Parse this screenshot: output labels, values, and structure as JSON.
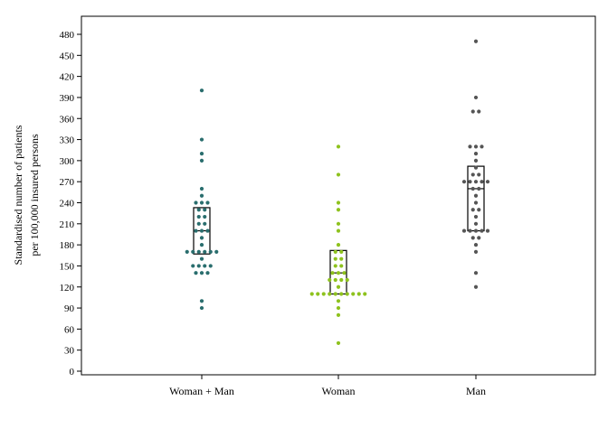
{
  "chart_data": {
    "type": "scatter",
    "subtype": "dot-strip-plot-with-box",
    "title": "",
    "xlabel": "",
    "ylabel_lines": [
      "Standardised number of patients",
      "per 100,000 insured persons"
    ],
    "ylim": [
      0,
      480
    ],
    "yticks": [
      0,
      30,
      60,
      90,
      120,
      150,
      180,
      210,
      240,
      270,
      300,
      330,
      360,
      390,
      420,
      450,
      480
    ],
    "grid": false,
    "legend": "none",
    "categories": [
      "Woman + Man",
      "Woman",
      "Man"
    ],
    "series": [
      {
        "category": "Woman + Man",
        "color": "#2a6e6e",
        "values": [
          90,
          100,
          140,
          140,
          140,
          150,
          150,
          150,
          150,
          160,
          170,
          170,
          170,
          170,
          170,
          170,
          180,
          190,
          200,
          200,
          200,
          210,
          210,
          220,
          220,
          230,
          230,
          240,
          240,
          240,
          250,
          260,
          300,
          310,
          330,
          400
        ],
        "box": {
          "q1": 167,
          "median": 200,
          "q3": 233
        }
      },
      {
        "category": "Woman",
        "color": "#8ec21e",
        "values": [
          40,
          80,
          90,
          100,
          110,
          110,
          110,
          110,
          110,
          110,
          110,
          110,
          110,
          110,
          120,
          130,
          130,
          130,
          130,
          140,
          140,
          140,
          150,
          150,
          160,
          160,
          170,
          170,
          180,
          200,
          210,
          230,
          240,
          280,
          320
        ],
        "box": {
          "q1": 110,
          "median": 140,
          "q3": 172
        }
      },
      {
        "category": "Man",
        "color": "#555555",
        "values": [
          120,
          140,
          170,
          180,
          190,
          190,
          200,
          200,
          200,
          200,
          200,
          210,
          220,
          230,
          230,
          240,
          250,
          260,
          260,
          270,
          270,
          270,
          270,
          270,
          280,
          280,
          290,
          300,
          310,
          320,
          320,
          320,
          370,
          370,
          390,
          470
        ],
        "box": {
          "q1": 200,
          "median": 260,
          "q3": 292
        }
      }
    ]
  }
}
